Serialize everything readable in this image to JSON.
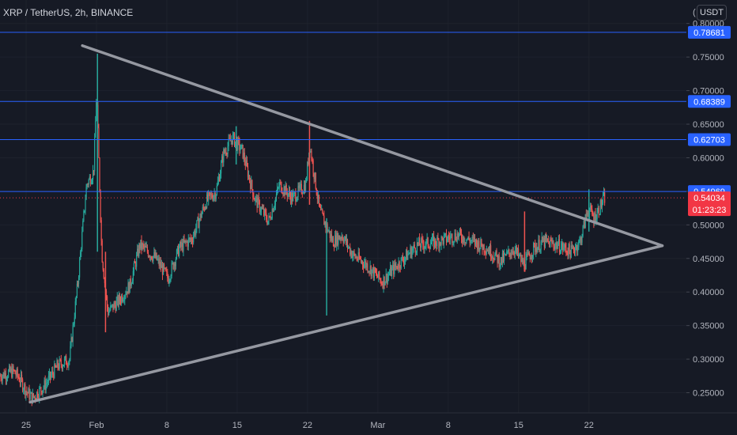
{
  "header": {
    "symbol_title": "XRP / TetherUS, 2h, BINANCE",
    "currency_button": "USDT",
    "axis_cap": "("
  },
  "colors": {
    "background": "#161a25",
    "up_candle": "#26a69a",
    "down_candle": "#ef5350",
    "level_line": "#2962ff",
    "level_tag": "#2962ff",
    "price_tag": "#f23645",
    "trendline": "#9598a1",
    "grid": "#1e222d"
  },
  "chart_data": {
    "type": "candlestick",
    "y_ticks": [
      "0.80000",
      "0.75000",
      "0.70000",
      "0.65000",
      "0.60000",
      "0.55000",
      "0.50000",
      "0.45000",
      "0.40000",
      "0.35000",
      "0.30000",
      "0.25000"
    ],
    "y_tick_values": [
      0.8,
      0.75,
      0.7,
      0.65,
      0.6,
      0.55,
      0.5,
      0.45,
      0.4,
      0.35,
      0.3,
      0.25
    ],
    "ylim": [
      0.22,
      0.835
    ],
    "x_ticks": [
      "25",
      "Feb",
      "8",
      "15",
      "22",
      "Mar",
      "8",
      "15",
      "22"
    ],
    "x_tick_days": [
      -7,
      0,
      7,
      14,
      21,
      28,
      35,
      42,
      49
    ],
    "xlim_days": [
      -9.6,
      58.7
    ],
    "horizontal_levels": [
      {
        "value": 0.78681,
        "label": "0.78681"
      },
      {
        "value": 0.68389,
        "label": "0.68389"
      },
      {
        "value": 0.62703,
        "label": "0.62703"
      },
      {
        "value": 0.54969,
        "label": "0.54969"
      }
    ],
    "current_price": {
      "value": 0.54034,
      "label": "0.54034",
      "countdown": "01:23:23"
    },
    "trendlines": [
      {
        "from": {
          "day": -1.4,
          "price": 0.767
        },
        "to": {
          "day": 56.3,
          "price": 0.469
        }
      },
      {
        "from": {
          "day": -6.6,
          "price": 0.236
        },
        "to": {
          "day": 56.3,
          "price": 0.469
        }
      }
    ],
    "price_path": [
      [
        -9.6,
        0.275
      ],
      [
        -8.2,
        0.282
      ],
      [
        -7.6,
        0.272
      ],
      [
        -6.8,
        0.25
      ],
      [
        -6.3,
        0.242
      ],
      [
        -5.0,
        0.262
      ],
      [
        -3.8,
        0.29
      ],
      [
        -2.6,
        0.3
      ],
      [
        -1.8,
        0.41
      ],
      [
        -0.9,
        0.56
      ],
      [
        -0.2,
        0.58
      ],
      [
        0.1,
        0.7
      ],
      [
        0.6,
        0.46
      ],
      [
        1.2,
        0.37
      ],
      [
        2.2,
        0.385
      ],
      [
        3.4,
        0.41
      ],
      [
        4.4,
        0.47
      ],
      [
        6.0,
        0.45
      ],
      [
        7.2,
        0.42
      ],
      [
        8.3,
        0.465
      ],
      [
        9.6,
        0.48
      ],
      [
        11.0,
        0.535
      ],
      [
        12.0,
        0.55
      ],
      [
        12.7,
        0.605
      ],
      [
        13.6,
        0.63
      ],
      [
        14.6,
        0.61
      ],
      [
        15.8,
        0.54
      ],
      [
        17.2,
        0.505
      ],
      [
        18.3,
        0.56
      ],
      [
        19.6,
        0.54
      ],
      [
        20.9,
        0.56
      ],
      [
        21.3,
        0.62
      ],
      [
        22.3,
        0.52
      ],
      [
        22.9,
        0.5
      ],
      [
        23.6,
        0.475
      ],
      [
        24.5,
        0.485
      ],
      [
        25.6,
        0.455
      ],
      [
        27.0,
        0.44
      ],
      [
        28.5,
        0.415
      ],
      [
        30.0,
        0.44
      ],
      [
        32.0,
        0.47
      ],
      [
        34.0,
        0.475
      ],
      [
        36.0,
        0.485
      ],
      [
        37.6,
        0.475
      ],
      [
        39.0,
        0.465
      ],
      [
        40.3,
        0.445
      ],
      [
        41.6,
        0.465
      ],
      [
        42.6,
        0.44
      ],
      [
        43.6,
        0.465
      ],
      [
        44.6,
        0.475
      ],
      [
        46.0,
        0.47
      ],
      [
        47.3,
        0.46
      ],
      [
        48.2,
        0.475
      ],
      [
        49.0,
        0.525
      ],
      [
        49.6,
        0.51
      ],
      [
        50.3,
        0.53
      ],
      [
        50.6,
        0.54
      ]
    ],
    "spikes": [
      {
        "day": 0.1,
        "high": 0.755,
        "low": 0.46
      },
      {
        "day": 0.9,
        "high": 0.46,
        "low": 0.34
      },
      {
        "day": 13.9,
        "high": 0.647,
        "low": 0.59
      },
      {
        "day": 21.2,
        "high": 0.655,
        "low": 0.53
      },
      {
        "day": 22.9,
        "high": 0.51,
        "low": 0.365
      },
      {
        "day": 42.6,
        "high": 0.52,
        "low": 0.43
      },
      {
        "day": 49.0,
        "high": 0.553,
        "low": 0.49
      }
    ]
  }
}
